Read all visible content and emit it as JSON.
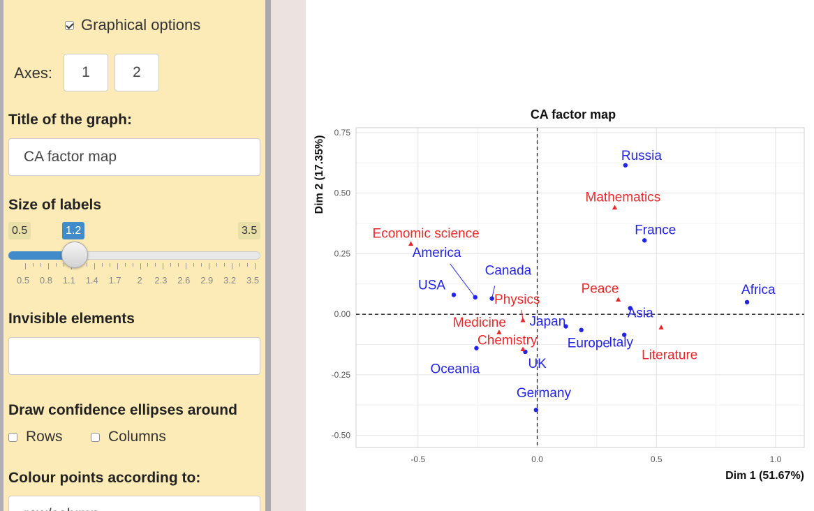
{
  "panel": {
    "graphical_options": {
      "label": "Graphical options",
      "checked": true
    },
    "axes": {
      "label": "Axes:",
      "axis1": "1",
      "axis2": "2"
    },
    "title_label": "Title of the graph:",
    "title_value": "CA factor map",
    "size_labels": {
      "label": "Size of labels",
      "min": "0.5",
      "max": "3.5",
      "value": "1.2",
      "value_fraction": 0.233,
      "ticks": [
        "0.5",
        "0.8",
        "1.1",
        "1.4",
        "1.7",
        "2",
        "2.3",
        "2.6",
        "2.9",
        "3.2",
        "3.5"
      ]
    },
    "invisible_label": "Invisible elements",
    "invisible_value": "",
    "ellipses": {
      "label": "Draw confidence ellipses around",
      "rows": "Rows",
      "columns": "Columns"
    },
    "colour_label": "Colour points according to:",
    "colour_value": "row/column"
  },
  "chart_data": {
    "type": "scatter",
    "title": "CA factor map",
    "xlabel": "Dim 1 (51.67%)",
    "ylabel": "Dim 2 (17.35%)",
    "xlim": [
      -0.76,
      1.12
    ],
    "ylim": [
      -0.55,
      0.77
    ],
    "xticks": [
      -0.5,
      0.0,
      0.5,
      1.0
    ],
    "xtick_labels": [
      "-0.5",
      "0.0",
      "0.5",
      "1.0"
    ],
    "yticks": [
      -0.5,
      -0.25,
      0.0,
      0.25,
      0.5,
      0.75
    ],
    "ytick_labels": [
      "-0.50",
      "-0.25",
      "0.00",
      "0.25",
      "0.50",
      "0.75"
    ],
    "grid": true,
    "colors": {
      "rows": "#2323e6",
      "columns": "#e8272b"
    },
    "series": [
      {
        "type": "rows",
        "marker": "circle",
        "points": [
          {
            "label": "Russia",
            "x": 0.37,
            "y": 0.615
          },
          {
            "label": "France",
            "x": 0.45,
            "y": 0.305
          },
          {
            "label": "Africa",
            "x": 0.88,
            "y": 0.05
          },
          {
            "label": "America",
            "x": -0.26,
            "y": 0.07
          },
          {
            "label": "Canada",
            "x": -0.19,
            "y": 0.065
          },
          {
            "label": "USA",
            "x": -0.35,
            "y": 0.08
          },
          {
            "label": "Japan",
            "x": 0.12,
            "y": -0.05
          },
          {
            "label": "Europe",
            "x": 0.185,
            "y": -0.065
          },
          {
            "label": "Asia",
            "x": 0.39,
            "y": 0.025
          },
          {
            "label": "Italy",
            "x": 0.365,
            "y": -0.085
          },
          {
            "label": "Oceania",
            "x": -0.255,
            "y": -0.14
          },
          {
            "label": "UK",
            "x": -0.05,
            "y": -0.155
          },
          {
            "label": "Germany",
            "x": -0.005,
            "y": -0.395
          }
        ]
      },
      {
        "type": "columns",
        "marker": "triangle",
        "points": [
          {
            "label": "Mathematics",
            "x": 0.325,
            "y": 0.44
          },
          {
            "label": "Economic science",
            "x": -0.53,
            "y": 0.29
          },
          {
            "label": "Physics",
            "x": -0.06,
            "y": -0.025
          },
          {
            "label": "Peace",
            "x": 0.34,
            "y": 0.06
          },
          {
            "label": "Medicine",
            "x": -0.16,
            "y": -0.075
          },
          {
            "label": "Chemistry",
            "x": -0.06,
            "y": -0.145
          },
          {
            "label": "Literature",
            "x": 0.52,
            "y": -0.055
          }
        ]
      }
    ]
  }
}
